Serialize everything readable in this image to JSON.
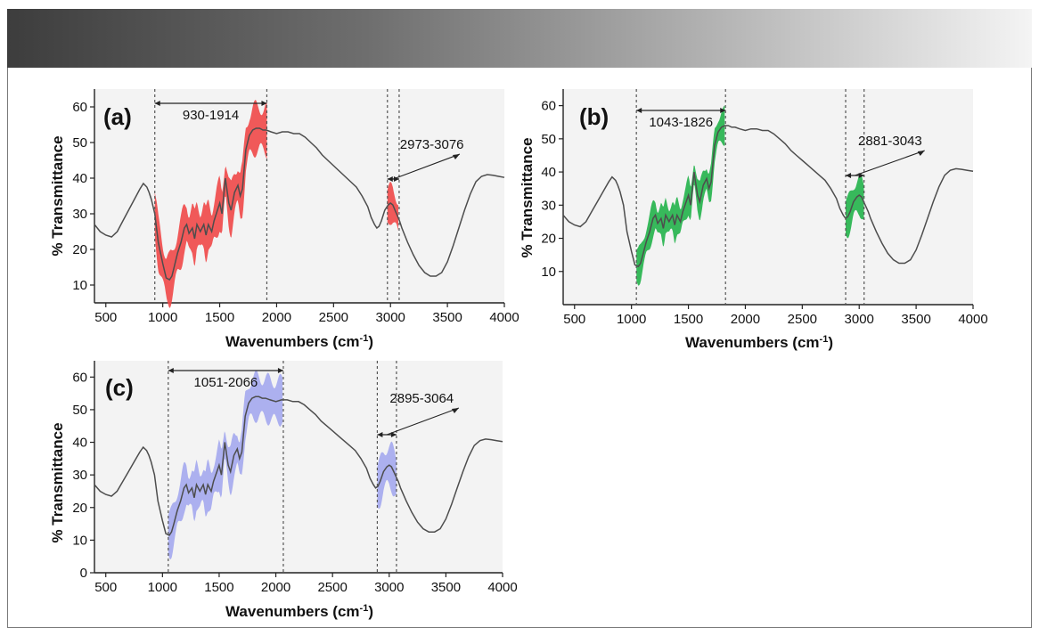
{
  "colors": {
    "band_dark": "#3d3d3d",
    "curve": "#555555",
    "dash": "#555555",
    "panel_a": "#f04848",
    "panel_b": "#22b24a",
    "panel_c": "#a4a8ee"
  },
  "chart_data": [
    {
      "type": "line",
      "panel_label": "(a)",
      "xlabel": "Wavenumbers (cm",
      "xlabel_sup": "-1",
      "xlabel_end": ")",
      "ylabel": "% Transmittance",
      "xlim": [
        400,
        4000
      ],
      "ylim": [
        5,
        65
      ],
      "xticks": [
        "500",
        "1000",
        "1500",
        "2000",
        "2500",
        "3000",
        "3500",
        "4000"
      ],
      "yticks": [
        "10",
        "20",
        "30",
        "40",
        "50",
        "60"
      ],
      "band_color": "#f04848",
      "regions": [
        {
          "label": "930-1914",
          "from": 930,
          "to": 1914,
          "band_hw": 6.0
        },
        {
          "label": "2973-3076",
          "from": 2973,
          "to": 3076,
          "band_hw": 4.5
        }
      ]
    },
    {
      "type": "line",
      "panel_label": "(b)",
      "xlabel": "Wavenumbers (cm",
      "xlabel_sup": "-1",
      "xlabel_end": ")",
      "ylabel": "% Transmittance",
      "xlim": [
        400,
        4000
      ],
      "ylim": [
        0,
        65
      ],
      "xticks": [
        "500",
        "1000",
        "1500",
        "2000",
        "2500",
        "3000",
        "3500",
        "4000"
      ],
      "yticks": [
        "10",
        "20",
        "30",
        "40",
        "50",
        "60"
      ],
      "band_color": "#22b24a",
      "regions": [
        {
          "label": "1043-1826",
          "from": 1043,
          "to": 1826,
          "band_hw": 4.5
        },
        {
          "label": "2881-3043",
          "from": 2881,
          "to": 3043,
          "band_hw": 5.0
        }
      ]
    },
    {
      "type": "line",
      "panel_label": "(c)",
      "xlabel": "Wavenumbers (cm",
      "xlabel_sup": "-1",
      "xlabel_end": ")",
      "ylabel": "% Transmittance",
      "xlim": [
        400,
        4000
      ],
      "ylim": [
        0,
        65
      ],
      "xticks": [
        "500",
        "1000",
        "1500",
        "2000",
        "2500",
        "3000",
        "3500",
        "4000"
      ],
      "yticks": [
        "0",
        "10",
        "20",
        "30",
        "40",
        "50",
        "60"
      ],
      "band_color": "#a4a8ee",
      "regions": [
        {
          "label": "1051-2066",
          "from": 1051,
          "to": 2066,
          "band_hw": 6.0
        },
        {
          "label": "2895-3064",
          "from": 2895,
          "to": 3064,
          "band_hw": 6.0
        }
      ]
    }
  ],
  "spectrum": {
    "x": [
      400,
      450,
      500,
      550,
      600,
      650,
      700,
      750,
      800,
      830,
      860,
      880,
      900,
      930,
      960,
      1000,
      1030,
      1060,
      1080,
      1100,
      1130,
      1160,
      1190,
      1210,
      1230,
      1260,
      1280,
      1300,
      1330,
      1360,
      1380,
      1400,
      1430,
      1450,
      1480,
      1500,
      1520,
      1550,
      1580,
      1600,
      1630,
      1660,
      1680,
      1700,
      1730,
      1760,
      1790,
      1820,
      1850,
      1880,
      1910,
      1950,
      2000,
      2050,
      2100,
      2150,
      2200,
      2250,
      2300,
      2350,
      2400,
      2450,
      2500,
      2550,
      2600,
      2650,
      2700,
      2750,
      2800,
      2830,
      2860,
      2880,
      2900,
      2920,
      2950,
      2980,
      3000,
      3020,
      3040,
      3060,
      3080,
      3100,
      3150,
      3200,
      3250,
      3300,
      3350,
      3400,
      3450,
      3500,
      3550,
      3600,
      3650,
      3700,
      3750,
      3800,
      3850,
      3900,
      3950,
      4000
    ],
    "y": [
      27,
      25,
      24,
      23.5,
      25,
      28,
      31,
      34,
      37,
      38.5,
      37.5,
      36,
      34,
      30,
      22,
      16,
      12,
      11.5,
      12.5,
      15,
      19,
      22,
      26,
      27,
      24.5,
      26,
      23,
      27,
      25,
      27,
      24,
      27,
      25,
      28,
      31,
      33,
      30,
      40,
      33,
      31,
      36,
      38,
      35,
      37,
      48,
      52,
      53.5,
      54,
      54,
      53.5,
      53.5,
      53,
      52.5,
      53,
      53,
      52.5,
      52.5,
      51.5,
      50,
      48.5,
      46.5,
      45,
      43.5,
      42,
      40.5,
      39,
      37.5,
      35,
      32,
      29,
      27,
      26,
      26.5,
      28,
      31,
      32.5,
      33,
      32.5,
      31,
      29.5,
      28,
      26,
      22,
      18.5,
      15.5,
      13.5,
      12.5,
      12.5,
      13.5,
      16.5,
      21,
      26,
      31,
      35.5,
      39,
      40.5,
      41,
      40.8,
      40.5,
      40.2
    ]
  }
}
